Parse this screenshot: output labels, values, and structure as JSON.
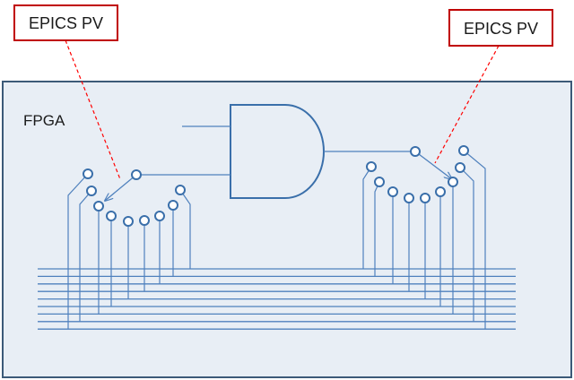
{
  "labels": {
    "pv_left": "EPICS PV",
    "pv_right": "EPICS PV",
    "fpga": "FPGA"
  },
  "colors": {
    "board_fill": "#e8eef5",
    "board_stroke": "#3c5a78",
    "wire": "#4f81bd",
    "gate": "#3a6faa",
    "pv_border": "#c00000",
    "pointer": "#ff0000"
  }
}
